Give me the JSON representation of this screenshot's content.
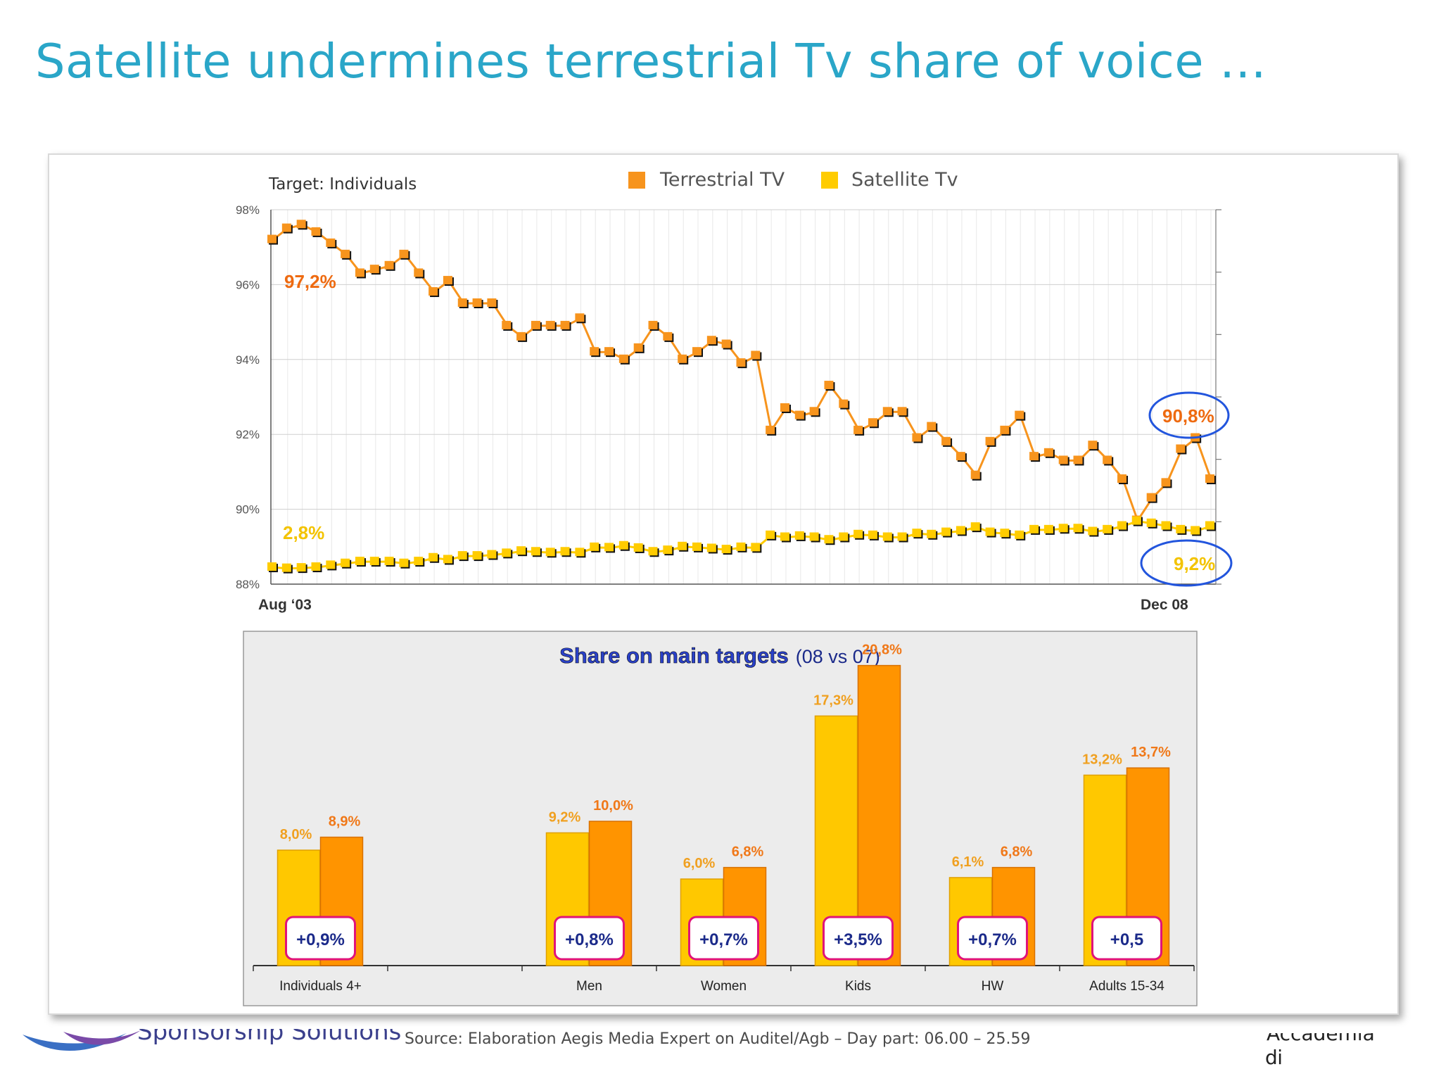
{
  "slide": {
    "title": "Satellite undermines terrestrial Tv share of voice …",
    "source": "Source: Elaboration Aegis Media Expert on Auditel/Agb – Day part: 06.00 – 25.59",
    "logo_left": "Sponsorship Solutions",
    "logo_right_top": "Accademia",
    "logo_right_bottom": "di Comunicazione"
  },
  "colors": {
    "title": "#2aa6c8",
    "terrestrial": "#f7941d",
    "terrestrial_label": "#ee6a10",
    "satellite": "#ffcc00",
    "satellite_label": "#f3c300",
    "bar_satellite": "#ffc800",
    "bar_terrestrial": "#ff9400",
    "delta_border": "#e0137a",
    "delta_text": "#1b2a8a",
    "highlight_circle": "#2255dd",
    "bar_title": "#2a41c9"
  },
  "chart_data": [
    {
      "type": "line",
      "target_label": "Target: Individuals",
      "x_start_label": "Aug ‘03",
      "x_end_label": "Dec 08",
      "ylim": [
        88,
        98
      ],
      "y_ticks": [
        "88%",
        "90%",
        "92%",
        "94%",
        "96%",
        "98%"
      ],
      "grid": true,
      "legend_position": "top",
      "legend": [
        "Terrestrial TV",
        "Satellite Tv"
      ],
      "series": [
        {
          "name": "Terrestrial TV",
          "start_label": "97,2%",
          "end_label": "90,8%",
          "values": [
            97.2,
            97.5,
            97.6,
            97.4,
            97.1,
            96.8,
            96.3,
            96.4,
            96.5,
            96.8,
            96.3,
            95.8,
            96.1,
            95.5,
            95.5,
            95.5,
            94.9,
            94.6,
            94.9,
            94.9,
            94.9,
            95.1,
            94.2,
            94.2,
            94.0,
            94.3,
            94.9,
            94.6,
            94.0,
            94.2,
            94.5,
            94.4,
            93.9,
            94.1,
            92.1,
            92.7,
            92.5,
            92.6,
            93.3,
            92.8,
            92.1,
            92.3,
            92.6,
            92.6,
            91.9,
            92.2,
            91.8,
            91.4,
            90.9,
            91.8,
            92.1,
            92.5,
            91.4,
            91.5,
            91.3,
            91.3,
            91.7,
            91.3,
            90.8,
            89.7,
            90.3,
            90.7,
            91.6,
            91.9,
            90.8
          ]
        },
        {
          "name": "Satellite Tv",
          "start_label": "2,8%",
          "end_label": "9,2%",
          "values": [
            88.45,
            88.42,
            88.43,
            88.45,
            88.5,
            88.55,
            88.6,
            88.6,
            88.6,
            88.55,
            88.6,
            88.7,
            88.65,
            88.75,
            88.75,
            88.78,
            88.82,
            88.88,
            88.86,
            88.84,
            88.86,
            88.84,
            88.98,
            88.97,
            89.02,
            88.96,
            88.86,
            88.9,
            89.0,
            88.98,
            88.95,
            88.92,
            88.98,
            88.97,
            89.3,
            89.25,
            89.28,
            89.25,
            89.18,
            89.25,
            89.32,
            89.3,
            89.25,
            89.25,
            89.35,
            89.32,
            89.38,
            89.42,
            89.52,
            89.38,
            89.35,
            89.3,
            89.45,
            89.45,
            89.48,
            89.48,
            89.4,
            89.45,
            89.55,
            89.68,
            89.62,
            89.55,
            89.45,
            89.42,
            89.55
          ]
        }
      ]
    },
    {
      "type": "bar",
      "title": "Share on main targets",
      "subtitle": "(08 vs 07)",
      "categories": [
        "Individuals 4+",
        "",
        "Men",
        "Women",
        "Kids",
        "HW",
        "Adults 15-34"
      ],
      "series": [
        {
          "values": [
            8.0,
            null,
            9.2,
            6.0,
            17.3,
            6.1,
            13.2
          ],
          "labels": [
            "8,0%",
            "",
            "9,2%",
            "6,0%",
            "17,3%",
            "6,1%",
            "13,2%"
          ]
        },
        {
          "values": [
            8.9,
            null,
            10.0,
            6.8,
            20.8,
            6.8,
            13.7
          ],
          "labels": [
            "8,9%",
            "",
            "10,0%",
            "6,8%",
            "20,8%",
            "6,8%",
            "13,7%"
          ]
        }
      ],
      "deltas": [
        "+0,9%",
        "",
        "+0,8%",
        "+0,7%",
        "+3,5%",
        "+0,7%",
        "+0,5"
      ]
    }
  ]
}
